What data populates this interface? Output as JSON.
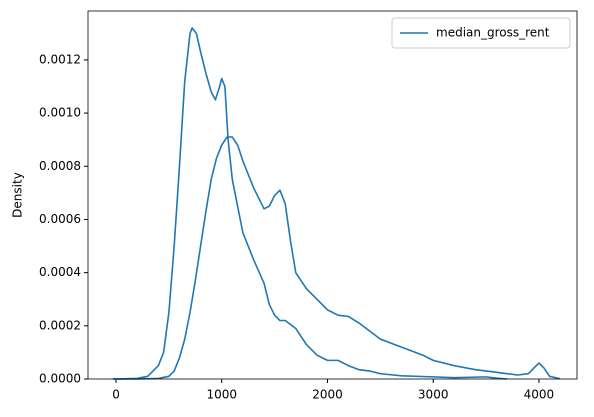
{
  "chart_data": {
    "type": "line",
    "ylabel": "Density",
    "legend": "upper right",
    "xlim": [
      -265,
      4360
    ],
    "ylim": [
      0,
      0.001384
    ],
    "xticks": [
      0,
      1000,
      2000,
      3000,
      4000
    ],
    "yticks": [
      {
        "value": 0,
        "label": "0.0000"
      },
      0.0002,
      0.0004,
      0.0006,
      0.0008,
      {
        "value": 0.001,
        "label": "0.0010"
      },
      0.0012
    ],
    "series": [
      {
        "name": "median_gross_rent",
        "color": "#1f77b4",
        "x": [
          -30,
          200,
          400,
          500,
          550,
          600,
          650,
          700,
          750,
          800,
          850,
          900,
          950,
          1000,
          1050,
          1100,
          1150,
          1200,
          1250,
          1300,
          1350,
          1400,
          1450,
          1500,
          1550,
          1600,
          1650,
          1700,
          1800,
          1900,
          2000,
          2100,
          2200,
          2300,
          2400,
          2500,
          2700,
          2900,
          3000,
          3200,
          3400,
          3600,
          3800,
          3900,
          3950,
          4000,
          4050,
          4100,
          4200
        ],
        "values": [
          0,
          0,
          2e-06,
          1e-05,
          3e-05,
          8e-05,
          0.00015,
          0.00025,
          0.00037,
          0.0005,
          0.00063,
          0.00075,
          0.00083,
          0.00088,
          0.00091,
          0.00091,
          0.00088,
          0.00082,
          0.00077,
          0.00072,
          0.00068,
          0.00064,
          0.00065,
          0.00069,
          0.00071,
          0.00066,
          0.00052,
          0.0004,
          0.00034,
          0.0003,
          0.00026,
          0.00024,
          0.000235,
          0.00021,
          0.00018,
          0.00015,
          0.00012,
          9e-05,
          7e-05,
          5e-05,
          3.5e-05,
          2.5e-05,
          1.5e-05,
          2e-05,
          4e-05,
          6e-05,
          4e-05,
          1e-05,
          1e-06
        ]
      },
      {
        "color": "#1f77b4",
        "x": [
          -20,
          200,
          300,
          400,
          450,
          500,
          550,
          600,
          650,
          700,
          720,
          760,
          800,
          850,
          900,
          940,
          980,
          1000,
          1030,
          1060,
          1100,
          1150,
          1200,
          1300,
          1400,
          1450,
          1500,
          1550,
          1600,
          1700,
          1800,
          1900,
          2000,
          2100,
          2200,
          2300,
          2400,
          2500,
          2700,
          3000,
          3200,
          3500,
          3600,
          3700
        ],
        "values": [
          0,
          2e-06,
          1e-05,
          5e-05,
          0.0001,
          0.00025,
          0.0005,
          0.0008,
          0.00112,
          0.0013,
          0.00132,
          0.0013,
          0.00123,
          0.00115,
          0.00108,
          0.00105,
          0.0011,
          0.00113,
          0.0011,
          0.0009,
          0.00075,
          0.00065,
          0.00055,
          0.00045,
          0.00036,
          0.00028,
          0.00024,
          0.00022,
          0.00022,
          0.00019,
          0.00013,
          9e-05,
          7e-05,
          7e-05,
          5e-05,
          3.5e-05,
          3e-05,
          2e-05,
          1.2e-05,
          8e-06,
          5e-06,
          8e-06,
          3e-06,
          0
        ]
      }
    ]
  }
}
